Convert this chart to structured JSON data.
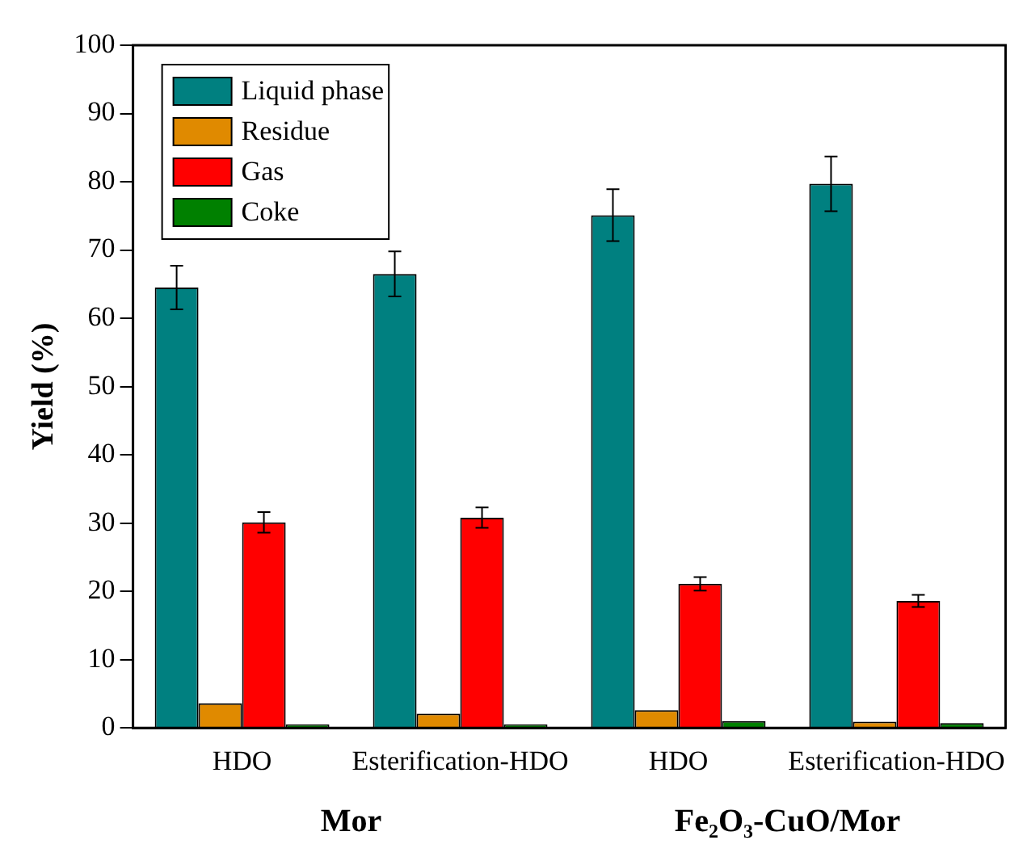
{
  "chart_data": {
    "type": "bar",
    "ylabel": "Yield (%)",
    "categories": [
      "HDO",
      "Esterification-HDO",
      "HDO",
      "Esterification-HDO"
    ],
    "series": [
      {
        "name": "Liquid phase",
        "color": "#008080",
        "values": [
          64.5,
          66.5,
          75.1,
          79.7
        ],
        "errors": [
          3.2,
          3.3,
          3.8,
          4.0
        ]
      },
      {
        "name": "Residue",
        "color": "#e08a00",
        "values": [
          3.6,
          2.1,
          2.6,
          0.9
        ]
      },
      {
        "name": "Gas",
        "color": "#ff0000",
        "values": [
          30.1,
          30.8,
          21.1,
          18.6
        ],
        "errors": [
          1.5,
          1.5,
          1.0,
          0.9
        ]
      },
      {
        "name": "Coke",
        "color": "#008000",
        "values": [
          0.5,
          0.5,
          1.0,
          0.7
        ]
      }
    ],
    "annotations": [
      "Mor",
      "Fe₂O₃-CuO/Mor"
    ],
    "ylim": [
      0,
      100
    ],
    "yticks": [
      0,
      10,
      20,
      30,
      40,
      50,
      60,
      70,
      80,
      90,
      100
    ],
    "legend": "top left",
    "grid": false
  }
}
